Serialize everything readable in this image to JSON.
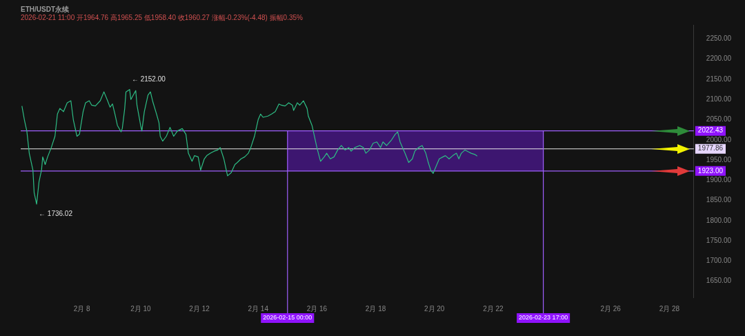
{
  "chart_data": {
    "type": "line",
    "title": "ETH/USDT永续",
    "subtitle": "2026-02-21 11:00 开1964.76 高1965.25 低1958.40 收1960.27 涨幅-0.23%(-4.48) 振幅0.35%",
    "x": [
      "2026-02-05T23:00",
      "2026-02-06T01:00",
      "2026-02-06T03:00",
      "2026-02-06T05:00",
      "2026-02-06T08:00",
      "2026-02-06T09:00",
      "2026-02-06T11:00",
      "2026-02-06T13:00",
      "2026-02-06T15:00",
      "2026-02-06T16:00",
      "2026-02-06T18:00",
      "2026-02-06T20:00",
      "2026-02-06T23:00",
      "2026-02-07T02:00",
      "2026-02-07T04:00",
      "2026-02-07T06:00",
      "2026-02-07T09:00",
      "2026-02-07T12:00",
      "2026-02-07T15:00",
      "2026-02-07T17:00",
      "2026-02-07T20:00",
      "2026-02-07T22:00",
      "2026-02-08T01:00",
      "2026-02-08T03:00",
      "2026-02-08T06:00",
      "2026-02-08T08:00",
      "2026-02-08T11:00",
      "2026-02-08T15:00",
      "2026-02-08T18:00",
      "2026-02-08T21:00",
      "2026-02-08T23:00",
      "2026-02-09T01:00",
      "2026-02-09T03:00",
      "2026-02-09T05:00",
      "2026-02-09T08:00",
      "2026-02-09T09:00",
      "2026-02-09T11:00",
      "2026-02-09T12:00",
      "2026-02-09T15:00",
      "2026-02-09T16:00",
      "2026-02-09T18:00",
      "2026-02-09T20:00",
      "2026-02-09T21:00",
      "2026-02-10T00:00",
      "2026-02-10T01:00",
      "2026-02-10T03:00",
      "2026-02-10T06:00",
      "2026-02-10T08:00",
      "2026-02-10T10:00",
      "2026-02-10T13:00",
      "2026-02-10T15:00",
      "2026-02-10T16:00",
      "2026-02-10T18:00",
      "2026-02-10T21:00",
      "2026-02-11T00:00",
      "2026-02-11T03:00",
      "2026-02-11T06:00",
      "2026-02-11T10:00",
      "2026-02-11T13:00",
      "2026-02-11T15:00",
      "2026-02-11T18:00",
      "2026-02-11T20:00",
      "2026-02-11T23:00",
      "2026-02-12T01:00",
      "2026-02-12T04:00",
      "2026-02-12T06:00",
      "2026-02-12T09:00",
      "2026-02-12T12:00",
      "2026-02-12T15:00",
      "2026-02-12T17:00",
      "2026-02-12T20:00",
      "2026-02-12T23:00",
      "2026-02-13T02:00",
      "2026-02-13T05:00",
      "2026-02-13T07:00",
      "2026-02-13T10:00",
      "2026-02-13T13:00",
      "2026-02-13T16:00",
      "2026-02-13T18:00",
      "2026-02-13T21:00",
      "2026-02-14T00:00",
      "2026-02-14T02:00",
      "2026-02-14T04:00",
      "2026-02-14T08:00",
      "2026-02-14T11:00",
      "2026-02-14T14:00",
      "2026-02-14T17:00",
      "2026-02-14T19:00",
      "2026-02-14T22:00",
      "2026-02-15T01:00",
      "2026-02-15T04:00",
      "2026-02-15T05:00",
      "2026-02-15T08:00",
      "2026-02-15T10:00",
      "2026-02-15T13:00",
      "2026-02-15T16:00",
      "2026-02-15T17:00",
      "2026-02-15T20:00",
      "2026-02-15T22:00",
      "2026-02-16T00:00",
      "2026-02-16T02:00",
      "2026-02-16T03:00",
      "2026-02-16T06:00",
      "2026-02-16T08:00",
      "2026-02-16T11:00",
      "2026-02-16T14:00",
      "2026-02-16T17:00",
      "2026-02-16T20:00",
      "2026-02-16T23:00",
      "2026-02-17T02:00",
      "2026-02-17T04:00",
      "2026-02-17T07:00",
      "2026-02-17T11:00",
      "2026-02-17T14:00",
      "2026-02-17T16:00",
      "2026-02-17T19:00",
      "2026-02-17T22:00",
      "2026-02-18T01:00",
      "2026-02-18T04:00",
      "2026-02-18T06:00",
      "2026-02-18T09:00",
      "2026-02-18T13:00",
      "2026-02-18T16:00",
      "2026-02-18T18:00",
      "2026-02-18T20:00",
      "2026-02-18T22:00",
      "2026-02-19T00:00",
      "2026-02-19T03:00",
      "2026-02-19T06:00",
      "2026-02-19T08:00",
      "2026-02-19T11:00",
      "2026-02-19T14:00",
      "2026-02-19T17:00",
      "2026-02-19T19:00",
      "2026-02-19T21:00",
      "2026-02-19T23:00",
      "2026-02-20T02:00",
      "2026-02-20T04:00",
      "2026-02-20T07:00",
      "2026-02-20T09:00",
      "2026-02-20T12:00",
      "2026-02-20T15:00",
      "2026-02-20T18:00",
      "2026-02-20T20:00",
      "2026-02-20T22:00",
      "2026-02-21T01:00",
      "2026-02-21T04:00",
      "2026-02-21T06:00",
      "2026-02-21T09:00",
      "2026-02-21T11:00"
    ],
    "series": [
      {
        "color": "#2ebd85",
        "values": [
          2084,
          2050,
          2022,
          1967,
          1925,
          1869,
          1841,
          1897,
          1925,
          1958,
          1939,
          1958,
          1981,
          2009,
          2064,
          2078,
          2070,
          2092,
          2097,
          2050,
          2009,
          2014,
          2070,
          2092,
          2097,
          2086,
          2084,
          2097,
          2119,
          2097,
          2081,
          2089,
          2064,
          2036,
          2020,
          2028,
          2078,
          2119,
          2125,
          2100,
          2111,
          2122,
          2086,
          2036,
          2022,
          2070,
          2111,
          2119,
          2094,
          2064,
          2042,
          2009,
          1997,
          2009,
          2031,
          2009,
          2022,
          2028,
          2014,
          1967,
          1947,
          1961,
          1958,
          1925,
          1953,
          1961,
          1967,
          1972,
          1975,
          1981,
          1953,
          1911,
          1919,
          1939,
          1944,
          1953,
          1958,
          1967,
          1981,
          2009,
          2050,
          2064,
          2056,
          2059,
          2064,
          2070,
          2089,
          2086,
          2084,
          2092,
          2086,
          2073,
          2092,
          2086,
          2097,
          2078,
          2059,
          2036,
          2009,
          1981,
          1958,
          1947,
          1958,
          1967,
          1953,
          1958,
          1975,
          1986,
          1975,
          1981,
          1972,
          1981,
          1986,
          1981,
          1967,
          1975,
          1992,
          1995,
          1981,
          1995,
          1986,
          2000,
          2014,
          2020,
          1995,
          1981,
          1967,
          1944,
          1953,
          1972,
          1981,
          1986,
          1967,
          1944,
          1925,
          1917,
          1939,
          1953,
          1958,
          1961,
          1953,
          1961,
          1967,
          1953,
          1967,
          1975,
          1970,
          1967,
          1964,
          1960
        ]
      }
    ],
    "xlim": [
      "2026-02-05T22:00",
      "2026-02-28T20:00"
    ],
    "xticks": [
      {
        "value": "2026-02-08",
        "label": "2月 8"
      },
      {
        "value": "2026-02-10",
        "label": "2月 10"
      },
      {
        "value": "2026-02-12",
        "label": "2月 12"
      },
      {
        "value": "2026-02-14",
        "label": "2月 14"
      },
      {
        "value": "2026-02-16",
        "label": "2月 16"
      },
      {
        "value": "2026-02-18",
        "label": "2月 18"
      },
      {
        "value": "2026-02-20",
        "label": "2月 20"
      },
      {
        "value": "2026-02-22",
        "label": "2月 22"
      },
      {
        "value": "2026-02-26",
        "label": "2月 26"
      },
      {
        "value": "2026-02-28",
        "label": "2月 28"
      }
    ],
    "ylim": [
      1610,
      2285
    ],
    "yticks": [
      {
        "value": 1650,
        "label": "1650.00"
      },
      {
        "value": 1700,
        "label": "1700.00"
      },
      {
        "value": 1750,
        "label": "1750.00"
      },
      {
        "value": 1800,
        "label": "1800.00"
      },
      {
        "value": 1850,
        "label": "1850.00"
      },
      {
        "value": 1900,
        "label": "1900.00"
      },
      {
        "value": 1950,
        "label": "1950.00"
      },
      {
        "value": 2000,
        "label": "2000.00"
      },
      {
        "value": 2050,
        "label": "2050.00"
      },
      {
        "value": 2100,
        "label": "2100.00"
      },
      {
        "value": 2150,
        "label": "2150.00"
      },
      {
        "value": 2200,
        "label": "2200.00"
      },
      {
        "value": 2250,
        "label": "2250.00"
      }
    ],
    "bands": [
      {
        "axis": "y",
        "from": 1923,
        "to": 2022.43,
        "color": "#3d1670"
      }
    ],
    "ref_lines": [
      {
        "axis": "y",
        "value": 2022.43,
        "label": "2022.43",
        "color": "#a060ff"
      },
      {
        "axis": "y",
        "value": 1977.86,
        "label": "1977.86",
        "color": "#e8e8e8"
      },
      {
        "axis": "y",
        "value": 1923,
        "label": "1923.00",
        "color": "#a060ff"
      },
      {
        "axis": "x",
        "value": "2026-02-15T00:00",
        "label": "2026-02-15 00:00",
        "color": "#a060ff"
      },
      {
        "axis": "x",
        "value": "2026-02-23T17:00",
        "label": "2026-02-23 17:00",
        "color": "#a060ff"
      }
    ],
    "annotations": [
      "← 2152.00",
      "← 1736.02"
    ]
  }
}
